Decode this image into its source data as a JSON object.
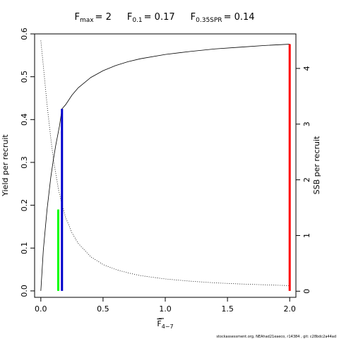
{
  "chart_data": {
    "type": "line",
    "title_parts": [
      {
        "main": "F",
        "sub": "max",
        "eq": "= 2"
      },
      {
        "main": "F",
        "sub": "0.1",
        "eq": "= 0.17"
      },
      {
        "main": "F",
        "sub": "0.35SPR",
        "eq": "= 0.14"
      }
    ],
    "xlabel": {
      "main": "F",
      "sub": "4−7"
    },
    "ylabel": "Yield per recruit",
    "y2label": "SSB per recruit",
    "xlim": [
      -0.05,
      2.05
    ],
    "ylim": [
      -0.015,
      0.6
    ],
    "y2lim": [
      -0.11,
      4.62
    ],
    "x_ticks": [
      0,
      0.5,
      1,
      1.5,
      2
    ],
    "x_tick_labels": [
      "0.0",
      "0.5",
      "1.0",
      "1.5",
      "2.0"
    ],
    "y_ticks": [
      0,
      0.1,
      0.2,
      0.3,
      0.4,
      0.5,
      0.6
    ],
    "y_tick_labels": [
      "0.0",
      "0.1",
      "0.2",
      "0.3",
      "0.4",
      "0.5",
      "0.6"
    ],
    "y2_ticks": [
      0,
      1,
      2,
      3,
      4
    ],
    "y2_tick_labels": [
      "0",
      "1",
      "2",
      "3",
      "4"
    ],
    "series": [
      {
        "axis": "left",
        "style": "solid",
        "x": [
          0,
          0.02,
          0.05,
          0.08,
          0.1,
          0.12,
          0.15,
          0.17,
          0.2,
          0.25,
          0.3,
          0.4,
          0.5,
          0.6,
          0.7,
          0.8,
          1.0,
          1.2,
          1.4,
          1.6,
          1.8,
          2.0
        ],
        "values": [
          0,
          0.095,
          0.19,
          0.265,
          0.305,
          0.34,
          0.385,
          0.425,
          0.435,
          0.457,
          0.474,
          0.498,
          0.514,
          0.526,
          0.535,
          0.542,
          0.552,
          0.559,
          0.565,
          0.569,
          0.573,
          0.576
        ]
      },
      {
        "axis": "right",
        "style": "dotted",
        "x": [
          0,
          0.02,
          0.05,
          0.08,
          0.1,
          0.14,
          0.17,
          0.2,
          0.25,
          0.3,
          0.4,
          0.5,
          0.6,
          0.7,
          0.8,
          1.0,
          1.2,
          1.4,
          1.6,
          1.8,
          2.0
        ],
        "values": [
          4.5,
          4.05,
          3.35,
          2.75,
          2.38,
          1.85,
          1.55,
          1.32,
          1.05,
          0.86,
          0.62,
          0.48,
          0.39,
          0.33,
          0.28,
          0.22,
          0.18,
          0.15,
          0.13,
          0.115,
          0.1
        ]
      }
    ],
    "reference_lines": [
      {
        "name": "F0.35SPR",
        "x": 0.14,
        "y": 0.19,
        "color": "#00ff00"
      },
      {
        "name": "F0.1",
        "x": 0.17,
        "y": 0.425,
        "color": "#0000cc"
      },
      {
        "name": "Fmax",
        "x": 2.0,
        "y": 0.576,
        "color": "#ff0000"
      }
    ]
  },
  "footer": "stockassessment.org, NEAhad21eaeco, r14384 , git: c28bdc2a44ad"
}
